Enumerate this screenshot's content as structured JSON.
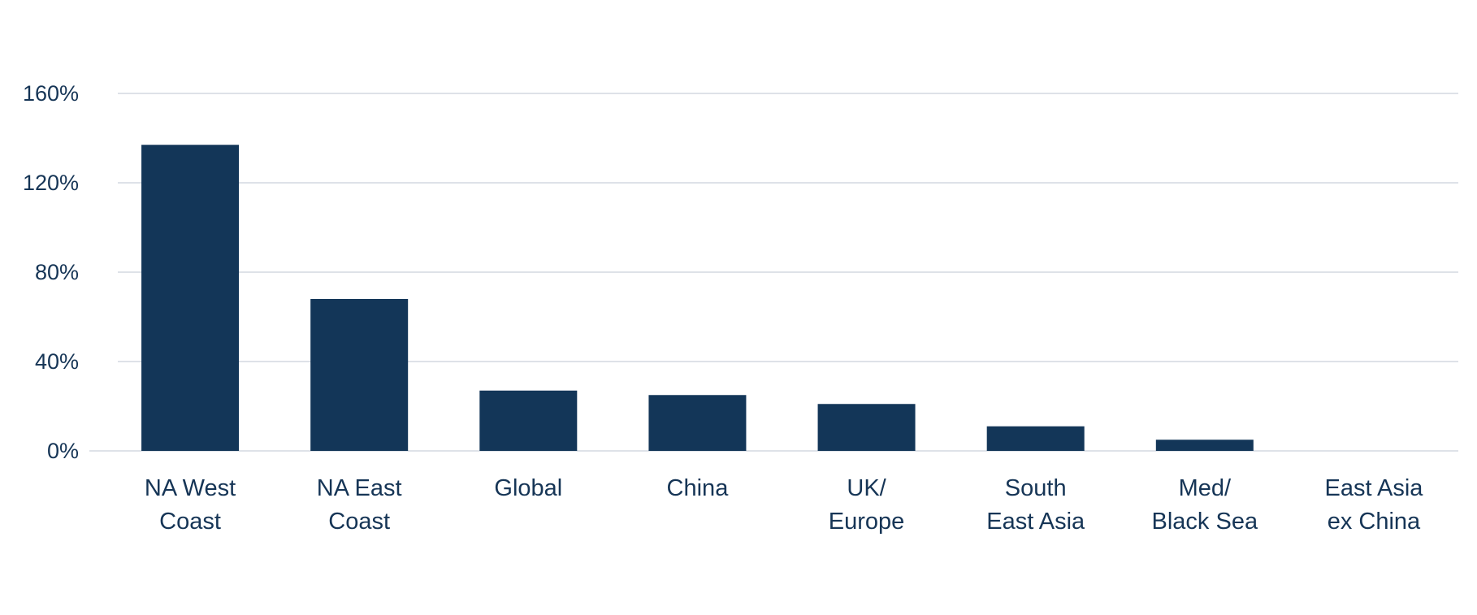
{
  "chart_data": {
    "type": "bar",
    "title": "",
    "xlabel": "",
    "ylabel": "",
    "categories": [
      [
        "NA West",
        "Coast"
      ],
      [
        "NA East",
        "Coast"
      ],
      [
        "Global"
      ],
      [
        "China"
      ],
      [
        "UK/",
        "Europe"
      ],
      [
        "South",
        "East Asia"
      ],
      [
        "Med/",
        "Black Sea"
      ],
      [
        "East Asia",
        "ex China"
      ]
    ],
    "values": [
      137,
      68,
      27,
      25,
      21,
      11,
      5,
      0
    ],
    "ylim": [
      0,
      160
    ],
    "yticks": [
      {
        "value": 0,
        "label": "0%"
      },
      {
        "value": 40,
        "label": "40%"
      },
      {
        "value": 80,
        "label": "80%"
      },
      {
        "value": 120,
        "label": "120%"
      },
      {
        "value": 160,
        "label": "160%"
      }
    ],
    "grid": true,
    "legend": "none",
    "colors": {
      "bar": "#133658",
      "grid": "#d3d8e0",
      "text": "#163556"
    }
  }
}
